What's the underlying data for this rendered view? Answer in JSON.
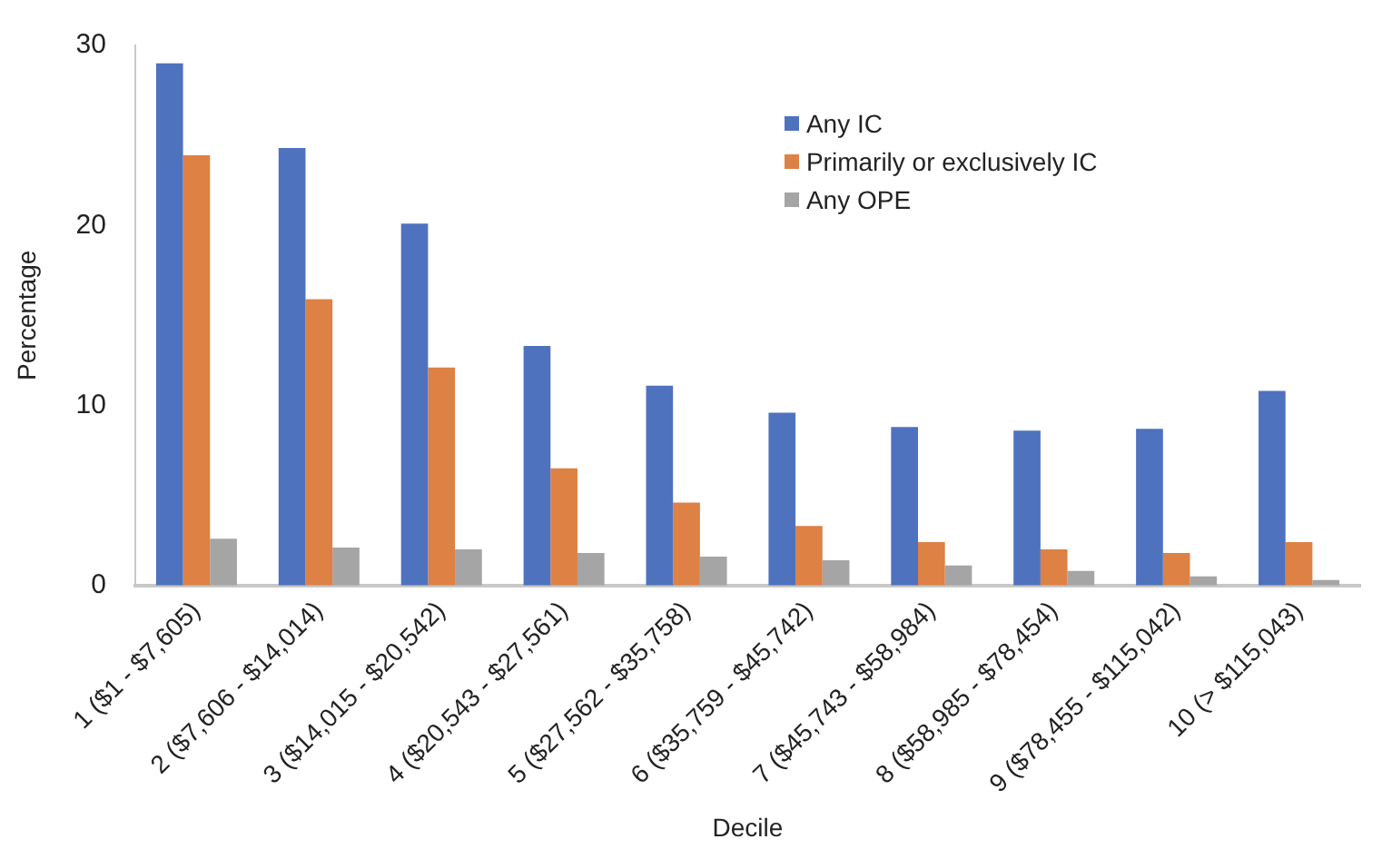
{
  "chart_data": {
    "type": "bar",
    "xlabel": "Decile",
    "ylabel": "Percentage",
    "categories": [
      "1 ($1 - $7,605)",
      "2 ($7,606 - $14,014)",
      "3 ($14,015 - $20,542)",
      "4 ($20,543 - $27,561)",
      "5 ($27,562 - $35,758)",
      "6 ($35,759 - $45,742)",
      "7 ($45,743 - $58,984)",
      "8 ($58,985 - $78,454)",
      "9 ($78,455 - $115,042)",
      "10 (> $115,043)"
    ],
    "series": [
      {
        "name": "Any IC",
        "color": "#4f72be",
        "values": [
          29.0,
          24.3,
          20.1,
          13.3,
          11.1,
          9.6,
          8.8,
          8.6,
          8.7,
          10.8
        ]
      },
      {
        "name": "Primarily or exclusively IC",
        "color": "#dd8144",
        "values": [
          23.9,
          15.9,
          12.1,
          6.5,
          4.6,
          3.3,
          2.4,
          2.0,
          1.8,
          2.4
        ]
      },
      {
        "name": "Any OPE",
        "color": "#a5a5a5",
        "values": [
          2.6,
          2.1,
          2.0,
          1.8,
          1.6,
          1.4,
          1.1,
          0.8,
          0.5,
          0.3
        ]
      }
    ],
    "ylim": [
      0,
      30
    ],
    "yticks": [
      0,
      10,
      20,
      30
    ],
    "grid": false,
    "legend": "top right"
  }
}
